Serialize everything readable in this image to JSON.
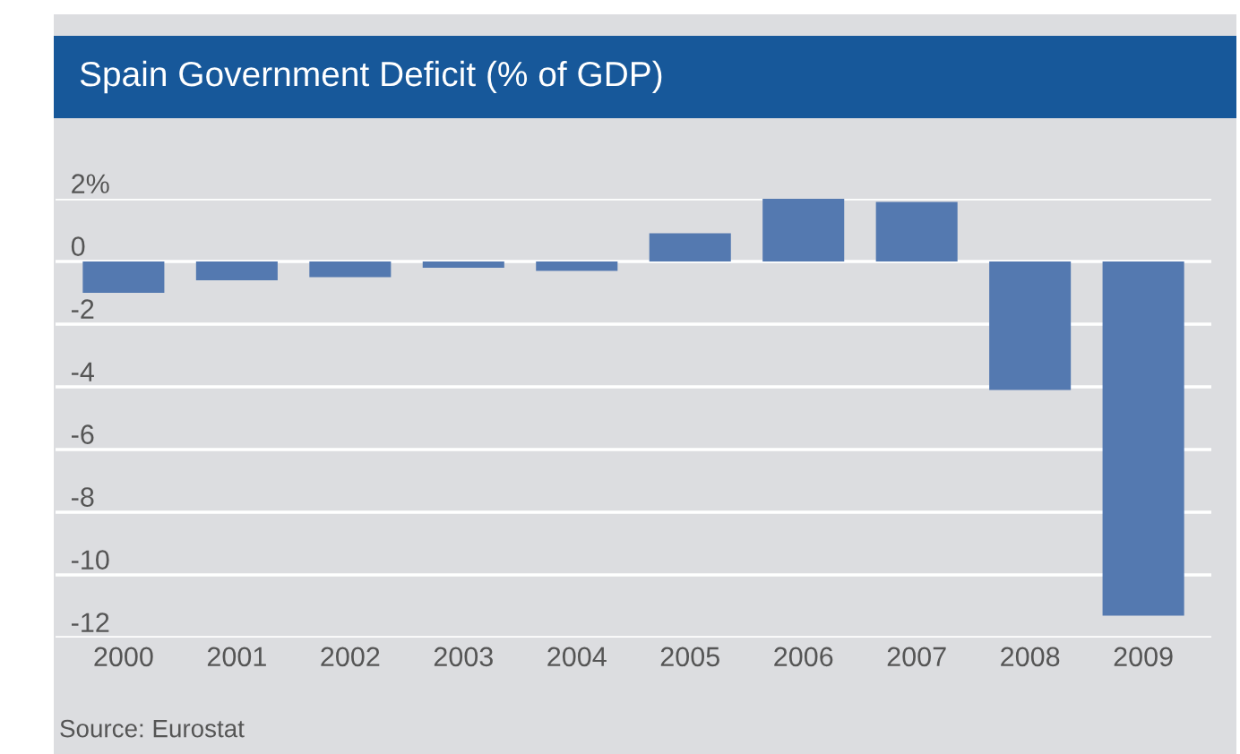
{
  "chart_data": {
    "type": "bar",
    "title": "Spain Government Deficit (% of GDP)",
    "categories": [
      "2000",
      "2001",
      "2002",
      "2003",
      "2004",
      "2005",
      "2006",
      "2007",
      "2008",
      "2009"
    ],
    "values": [
      -1.0,
      -0.6,
      -0.5,
      -0.2,
      -0.3,
      0.9,
      2.0,
      1.9,
      -4.1,
      -11.3
    ],
    "color": "#5479b0",
    "ylim": [
      -12,
      2
    ],
    "yticks": [
      {
        "value": 2,
        "label": "2%"
      },
      0,
      -2,
      -4,
      -6,
      -8,
      -10,
      -12
    ],
    "grid": "y",
    "annotations": [
      "Source: Eurostat"
    ]
  }
}
